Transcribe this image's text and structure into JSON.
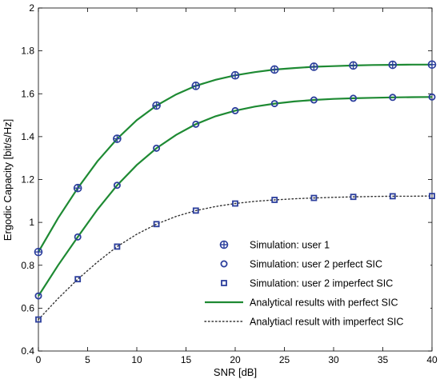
{
  "chart_data": {
    "type": "line",
    "xlabel": "SNR [dB]",
    "ylabel": "Ergodic Capacity [bit/s/Hz]",
    "xlim": [
      0,
      40
    ],
    "ylim": [
      0.4,
      2
    ],
    "xticks": [
      0,
      5,
      10,
      15,
      20,
      25,
      30,
      35,
      40
    ],
    "xtick_labels": [
      "0",
      "5",
      "10",
      "15",
      "20",
      "25",
      "30",
      "35",
      "40"
    ],
    "yticks": [
      0.4,
      0.6,
      0.8,
      1.0,
      1.2,
      1.4,
      1.6,
      1.8,
      2.0
    ],
    "ytick_labels": [
      "0.4",
      "0.6",
      "0.8",
      "1",
      "1.2",
      "1.4",
      "1.6",
      "1.8",
      "2"
    ],
    "grid": false,
    "legend_position": "bottom-right",
    "colors": {
      "marker": "#2b3e9c",
      "analytic_perfect": "#1e8a33",
      "analytic_imperfect": "#333333"
    },
    "series": [
      {
        "name": "Simulation: user 1",
        "style": "marker-circle-plus",
        "x": [
          0,
          4,
          8,
          12,
          16,
          20,
          24,
          28,
          32,
          36,
          40
        ],
        "values": [
          0.862,
          1.16,
          1.39,
          1.545,
          1.637,
          1.686,
          1.713,
          1.726,
          1.732,
          1.735,
          1.736
        ]
      },
      {
        "name": "Simulation: user 2 perfect SIC",
        "style": "marker-circle",
        "x": [
          0,
          4,
          8,
          12,
          16,
          20,
          24,
          28,
          32,
          36,
          40
        ],
        "values": [
          0.657,
          0.932,
          1.173,
          1.346,
          1.458,
          1.521,
          1.554,
          1.571,
          1.579,
          1.583,
          1.585
        ]
      },
      {
        "name": "Simulation: user 2 imperfect SIC",
        "style": "marker-square",
        "x": [
          0,
          4,
          8,
          12,
          16,
          20,
          24,
          28,
          32,
          36,
          40
        ],
        "values": [
          0.547,
          0.735,
          0.887,
          0.992,
          1.055,
          1.088,
          1.105,
          1.114,
          1.119,
          1.122,
          1.123
        ]
      },
      {
        "name": "Analytical results with perfect SIC",
        "style": "line-solid",
        "x": [
          0,
          2,
          4,
          6,
          8,
          10,
          12,
          14,
          16,
          18,
          20,
          22,
          24,
          26,
          28,
          30,
          32,
          34,
          36,
          38,
          40
        ],
        "curves": [
          [
            0.862,
            1.02,
            1.16,
            1.285,
            1.39,
            1.477,
            1.545,
            1.597,
            1.637,
            1.665,
            1.686,
            1.701,
            1.713,
            1.72,
            1.726,
            1.729,
            1.732,
            1.734,
            1.735,
            1.736,
            1.736
          ],
          [
            0.657,
            0.8,
            0.932,
            1.06,
            1.173,
            1.268,
            1.346,
            1.408,
            1.458,
            1.495,
            1.521,
            1.54,
            1.554,
            1.564,
            1.571,
            1.576,
            1.579,
            1.581,
            1.583,
            1.584,
            1.585
          ]
        ]
      },
      {
        "name": "Analytiacl result with imperfect SIC",
        "style": "line-dotted",
        "x": [
          0,
          2,
          4,
          6,
          8,
          10,
          12,
          14,
          16,
          18,
          20,
          22,
          24,
          26,
          28,
          30,
          32,
          34,
          36,
          38,
          40
        ],
        "values": [
          0.547,
          0.645,
          0.735,
          0.815,
          0.887,
          0.945,
          0.992,
          1.028,
          1.055,
          1.074,
          1.088,
          1.098,
          1.105,
          1.11,
          1.114,
          1.117,
          1.119,
          1.121,
          1.122,
          1.122,
          1.123
        ]
      }
    ]
  }
}
